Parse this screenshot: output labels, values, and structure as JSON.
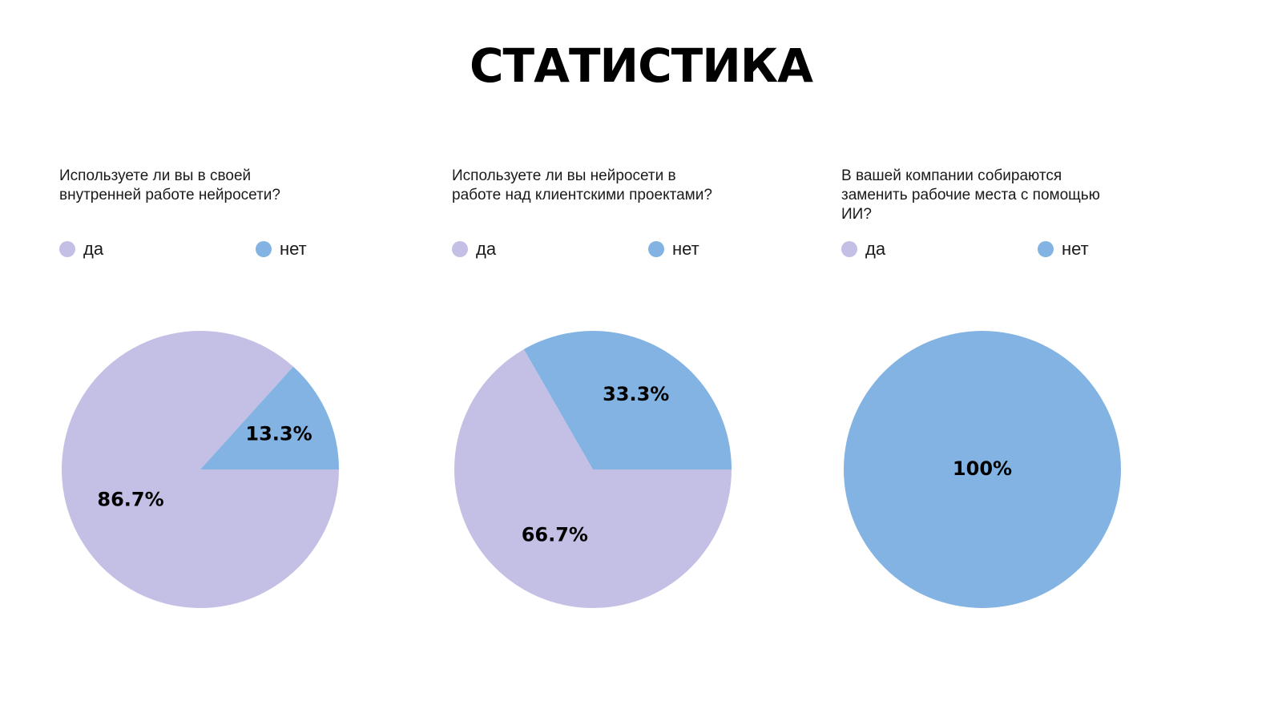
{
  "page": {
    "title": "СТАТИСТИКА"
  },
  "colors": {
    "yes": "#c4c0e5",
    "no": "#82b3e2"
  },
  "legend": {
    "yes_label": "да",
    "no_label": "нет"
  },
  "chart_data": [
    {
      "type": "pie",
      "title": "Используете ли вы в своей внутренней работе нейросети?",
      "slices": [
        {
          "name": "да",
          "value": 86.7,
          "label": "86.7%"
        },
        {
          "name": "нет",
          "value": 13.3,
          "label": "13.3%"
        }
      ],
      "legend_placement": "top"
    },
    {
      "type": "pie",
      "title": "Используете ли вы нейросети в работе над клиентскими проектами?",
      "slices": [
        {
          "name": "да",
          "value": 66.7,
          "label": "66.7%"
        },
        {
          "name": "нет",
          "value": 33.3,
          "label": "33.3%"
        }
      ],
      "legend_placement": "top"
    },
    {
      "type": "pie",
      "title": "В вашей компании собираются заменить рабочие места с помощью ИИ?",
      "slices": [
        {
          "name": "да",
          "value": 0,
          "label": ""
        },
        {
          "name": "нет",
          "value": 100,
          "label": "100%"
        }
      ],
      "legend_placement": "top"
    }
  ]
}
